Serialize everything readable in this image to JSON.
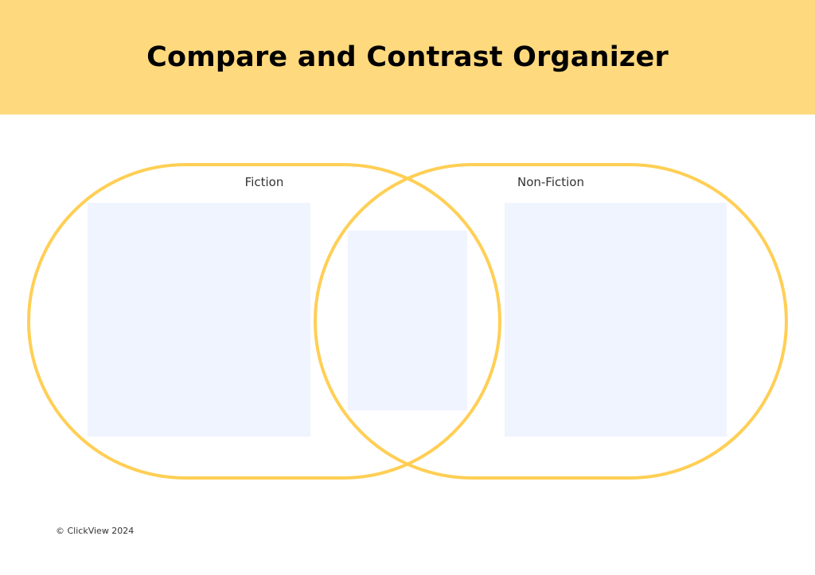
{
  "header": {
    "title": "Compare and Contrast Organizer"
  },
  "diagram": {
    "left_label": "Fiction",
    "right_label": "Non-Fiction",
    "outline_color": "#FFCF55",
    "box_color": "#F0F4FF"
  },
  "footer": {
    "copyright": "© ClickView 2024"
  }
}
